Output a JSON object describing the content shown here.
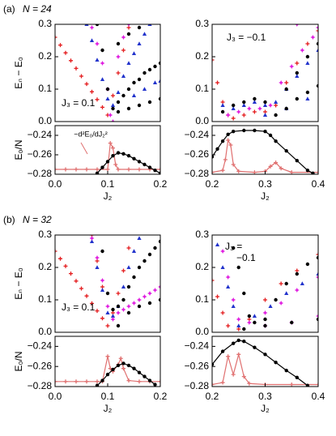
{
  "figure": {
    "rows": [
      {
        "label": "(a)",
        "n": "N = 24"
      },
      {
        "label": "(b)",
        "n": "N = 32"
      }
    ]
  },
  "chart_data": [
    {
      "type": "scatter",
      "ylabel": "Eₙ − E₀",
      "annotations": [
        "J₃ = 0.1"
      ],
      "xlim": [
        0,
        0.2
      ],
      "ylim": [
        0,
        0.3
      ],
      "yticks": [
        {
          "value": 0,
          "label": "0.0"
        },
        0.1,
        0.2,
        0.3
      ],
      "series": [
        {
          "color": "#e41a1c",
          "marker": "plus",
          "x": [
            0,
            0.01,
            0.02,
            0.03,
            0.04,
            0.05,
            0.06,
            0.07,
            0.08,
            0.09,
            0.1,
            0.11,
            0.12,
            0.13,
            0.14
          ],
          "values": [
            0.26,
            0.236,
            0.212,
            0.188,
            0.164,
            0.14,
            0.116,
            0.092,
            0.068,
            0.044,
            0.02,
            0.08,
            0.15,
            0.22,
            0.29
          ]
        },
        {
          "color": "#2233cc",
          "marker": "triangle",
          "x": [
            0.06,
            0.07,
            0.08,
            0.09,
            0.1,
            0.11,
            0.12,
            0.13,
            0.14,
            0.15,
            0.16,
            0.17,
            0.18,
            0.15,
            0.17,
            0.19,
            0.2
          ],
          "values": [
            0.3,
            0.25,
            0.19,
            0.13,
            0.07,
            0.05,
            0.09,
            0.14,
            0.18,
            0.21,
            0.24,
            0.27,
            0.3,
            0.08,
            0.1,
            0.12,
            0.125
          ]
        },
        {
          "color": "#e01ee0",
          "marker": "star",
          "x": [
            0.07,
            0.08,
            0.09,
            0.1,
            0.105,
            0.11,
            0.12,
            0.13,
            0.14
          ],
          "values": [
            0.29,
            0.24,
            0.18,
            0.1,
            0.02,
            0.0,
            0.2,
            0.26,
            0.3
          ]
        },
        {
          "color": "#000000",
          "marker": "circle",
          "x": [
            0.08,
            0.09,
            0.1,
            0.11,
            0.12,
            0.13,
            0.14,
            0.15,
            0.16,
            0.17,
            0.18,
            0.19,
            0.2,
            0.12,
            0.14,
            0.16,
            0.18,
            0.2,
            0.12,
            0.14,
            0.16
          ],
          "values": [
            0.3,
            0.22,
            0.1,
            0.04,
            0.06,
            0.08,
            0.1,
            0.12,
            0.13,
            0.15,
            0.16,
            0.17,
            0.18,
            0.03,
            0.04,
            0.05,
            0.06,
            0.07,
            0.24,
            0.27,
            0.29
          ]
        }
      ]
    },
    {
      "type": "scatter",
      "annotations": [
        "J₃ = −0.1"
      ],
      "xlim": [
        0.2,
        0.4
      ],
      "ylim": [
        0,
        0.3
      ],
      "yticks": [
        {
          "value": 0,
          "label": "0.0"
        },
        0.1,
        0.2,
        0.3
      ],
      "series": [
        {
          "color": "#e41a1c",
          "marker": "plus",
          "x": [
            0.2,
            0.21,
            0.22,
            0.23,
            0.24,
            0.26,
            0.28,
            0.3,
            0.32,
            0.34,
            0.36,
            0.38,
            0.4
          ],
          "values": [
            0.19,
            0.12,
            0.06,
            0.02,
            0.01,
            0.02,
            0.03,
            0.03,
            0.05,
            0.12,
            0.18,
            0.24,
            0.28
          ]
        },
        {
          "color": "#2233cc",
          "marker": "triangle",
          "x": [
            0.22,
            0.24,
            0.26,
            0.28,
            0.3,
            0.32,
            0.34,
            0.36,
            0.38,
            0.4,
            0.3,
            0.34,
            0.38
          ],
          "values": [
            0.05,
            0.04,
            0.05,
            0.06,
            0.05,
            0.06,
            0.1,
            0.14,
            0.18,
            0.22,
            0.02,
            0.04,
            0.07
          ]
        },
        {
          "color": "#e01ee0",
          "marker": "star",
          "x": [
            0.23,
            0.25,
            0.27,
            0.29,
            0.31,
            0.33,
            0.35,
            0.37,
            0.39,
            0.4,
            0.36
          ],
          "values": [
            0.02,
            0.03,
            0.04,
            0.04,
            0.05,
            0.12,
            0.17,
            0.22,
            0.26,
            0.29,
            0.3
          ]
        },
        {
          "color": "#000000",
          "marker": "circle",
          "x": [
            0.22,
            0.24,
            0.26,
            0.28,
            0.3,
            0.32,
            0.34,
            0.36,
            0.38,
            0.4,
            0.34,
            0.36,
            0.38,
            0.4
          ],
          "values": [
            0.03,
            0.05,
            0.06,
            0.07,
            0.06,
            0.02,
            0.04,
            0.07,
            0.09,
            0.11,
            0.1,
            0.15,
            0.2,
            0.24
          ]
        }
      ]
    },
    {
      "type": "line",
      "ylabel": "E₀/N",
      "xlabel": "J₂",
      "annotations": [
        "−d²E₀/dJ₂²"
      ],
      "xlim": [
        0,
        0.2
      ],
      "ylim": [
        -0.28,
        -0.23
      ],
      "yticks": [
        {
          "value": -0.24,
          "label": "−0.24"
        },
        {
          "value": -0.26,
          "label": "−0.26"
        },
        {
          "value": -0.28,
          "label": "−0.28"
        }
      ],
      "xticks": [
        {
          "value": 0,
          "label": "0.0"
        },
        0.1,
        0.2
      ],
      "series": [
        {
          "color": "#e07070",
          "marker": "plus",
          "x": [
            0,
            0.02,
            0.04,
            0.06,
            0.08,
            0.1,
            0.105,
            0.11,
            0.115,
            0.12,
            0.14,
            0.16,
            0.18,
            0.2
          ],
          "values": [
            -0.275,
            -0.275,
            -0.275,
            -0.275,
            -0.275,
            -0.275,
            -0.248,
            -0.253,
            -0.27,
            -0.275,
            -0.275,
            -0.275,
            -0.275,
            -0.275
          ]
        },
        {
          "color": "#000000",
          "marker": "circle",
          "x": [
            0.08,
            0.09,
            0.1,
            0.11,
            0.12,
            0.13,
            0.14,
            0.15,
            0.16,
            0.17,
            0.18,
            0.19,
            0.2
          ],
          "values": [
            -0.279,
            -0.273,
            -0.267,
            -0.261,
            -0.258,
            -0.259,
            -0.261,
            -0.264,
            -0.267,
            -0.27,
            -0.273,
            -0.276,
            -0.279
          ]
        }
      ]
    },
    {
      "type": "line",
      "xlabel": "J₂",
      "xlim": [
        0.2,
        0.4
      ],
      "ylim": [
        -0.28,
        -0.23
      ],
      "yticks": [
        {
          "value": -0.24,
          "label": "−0.24"
        },
        {
          "value": -0.26,
          "label": "−0.26"
        },
        {
          "value": -0.28,
          "label": "−0.28"
        }
      ],
      "xticks": [
        0.2,
        0.3,
        0.4
      ],
      "series": [
        {
          "color": "#e07070",
          "marker": "plus",
          "x": [
            0.2,
            0.22,
            0.225,
            0.23,
            0.235,
            0.24,
            0.25,
            0.28,
            0.3,
            0.31,
            0.32,
            0.33,
            0.35,
            0.4
          ],
          "values": [
            -0.278,
            -0.276,
            -0.265,
            -0.245,
            -0.25,
            -0.27,
            -0.277,
            -0.278,
            -0.277,
            -0.272,
            -0.268,
            -0.274,
            -0.278,
            -0.278
          ]
        },
        {
          "color": "#000000",
          "marker": "circle",
          "x": [
            0.2,
            0.21,
            0.22,
            0.23,
            0.24,
            0.26,
            0.28,
            0.3,
            0.31,
            0.32,
            0.34,
            0.36,
            0.38,
            0.39
          ],
          "values": [
            -0.262,
            -0.254,
            -0.246,
            -0.239,
            -0.236,
            -0.235,
            -0.235,
            -0.236,
            -0.24,
            -0.246,
            -0.256,
            -0.266,
            -0.276,
            -0.279
          ]
        }
      ]
    },
    {
      "type": "scatter",
      "ylabel": "Eₙ − E₀",
      "annotations": [
        "J₃ = 0.1"
      ],
      "xlim": [
        0,
        0.2
      ],
      "ylim": [
        0,
        0.3
      ],
      "yticks": [
        {
          "value": 0,
          "label": "0.0"
        },
        0.1,
        0.2,
        0.3
      ],
      "series": [
        {
          "color": "#e41a1c",
          "marker": "plus",
          "x": [
            0,
            0.01,
            0.02,
            0.03,
            0.04,
            0.05,
            0.06,
            0.07,
            0.08,
            0.09,
            0.1,
            0.11,
            0.12,
            0.13,
            0.14,
            0.07,
            0.08,
            0.09
          ],
          "values": [
            0.25,
            0.227,
            0.204,
            0.181,
            0.158,
            0.135,
            0.112,
            0.089,
            0.066,
            0.043,
            0.02,
            0.06,
            0.12,
            0.19,
            0.26,
            0.3,
            0.22,
            0.14
          ]
        },
        {
          "color": "#2233cc",
          "marker": "triangle",
          "x": [
            0.07,
            0.08,
            0.09,
            0.1,
            0.11,
            0.12,
            0.13,
            0.14,
            0.15,
            0.16
          ],
          "values": [
            0.28,
            0.2,
            0.13,
            0.06,
            0.05,
            0.08,
            0.14,
            0.2,
            0.25,
            0.29
          ]
        },
        {
          "color": "#e01ee0",
          "marker": "star",
          "x": [
            0.07,
            0.08,
            0.09,
            0.1,
            0.11,
            0.12,
            0.13,
            0.14,
            0.15,
            0.16,
            0.17,
            0.18,
            0.19,
            0.2
          ],
          "values": [
            0.29,
            0.23,
            0.16,
            0.08,
            0.04,
            0.06,
            0.07,
            0.08,
            0.09,
            0.1,
            0.11,
            0.12,
            0.13,
            0.14
          ]
        },
        {
          "color": "#000000",
          "marker": "circle",
          "x": [
            0.09,
            0.1,
            0.11,
            0.12,
            0.13,
            0.14,
            0.15,
            0.16,
            0.17,
            0.18,
            0.19,
            0.2,
            0.12,
            0.14,
            0.16,
            0.18,
            0.2
          ],
          "values": [
            0.25,
            0.12,
            0.07,
            0.08,
            0.1,
            0.14,
            0.17,
            0.2,
            0.22,
            0.24,
            0.26,
            0.28,
            0.02,
            0.06,
            0.08,
            0.09,
            0.1
          ]
        }
      ]
    },
    {
      "type": "scatter",
      "annotations": [
        "J₃ =",
        "−0.1"
      ],
      "xlim": [
        0.2,
        0.4
      ],
      "ylim": [
        0,
        0.3
      ],
      "yticks": [
        {
          "value": 0,
          "label": "0.0"
        },
        0.1,
        0.2,
        0.3
      ],
      "series": [
        {
          "color": "#e41a1c",
          "marker": "plus",
          "x": [
            0.2,
            0.21,
            0.22,
            0.23,
            0.25,
            0.27,
            0.3,
            0.33,
            0.36,
            0.4
          ],
          "values": [
            0.16,
            0.11,
            0.06,
            0.02,
            0.01,
            0.04,
            0.1,
            0.15,
            0.19,
            0.24
          ]
        },
        {
          "color": "#2233cc",
          "marker": "triangle",
          "x": [
            0.21,
            0.22,
            0.23,
            0.24,
            0.25,
            0.28,
            0.31,
            0.34,
            0.37,
            0.4
          ],
          "values": [
            0.27,
            0.2,
            0.14,
            0.08,
            0.02,
            0.05,
            0.08,
            0.12,
            0.15,
            0.18
          ]
        },
        {
          "color": "#e01ee0",
          "marker": "star",
          "x": [
            0.22,
            0.23,
            0.24,
            0.25,
            0.27,
            0.3,
            0.33,
            0.36,
            0.4,
            0.3,
            0.35,
            0.4
          ],
          "values": [
            0.25,
            0.17,
            0.1,
            0.04,
            0.03,
            0.06,
            0.09,
            0.13,
            0.17,
            0.02,
            0.03,
            0.05
          ]
        },
        {
          "color": "#000000",
          "marker": "circle",
          "x": [
            0.24,
            0.25,
            0.26,
            0.27,
            0.28,
            0.3,
            0.32,
            0.34,
            0.36,
            0.38,
            0.4,
            0.26,
            0.3,
            0.35,
            0.4
          ],
          "values": [
            0.26,
            0.2,
            0.12,
            0.05,
            0.03,
            0.04,
            0.1,
            0.15,
            0.18,
            0.21,
            0.23,
            0.01,
            0.02,
            0.03,
            0.04
          ]
        }
      ]
    },
    {
      "type": "line",
      "ylabel": "E₀/N",
      "xlabel": "J₂",
      "xlim": [
        0,
        0.2
      ],
      "ylim": [
        -0.28,
        -0.23
      ],
      "yticks": [
        {
          "value": -0.24,
          "label": "−0.24"
        },
        {
          "value": -0.26,
          "label": "−0.26"
        },
        {
          "value": -0.28,
          "label": "−0.28"
        }
      ],
      "xticks": [
        {
          "value": 0,
          "label": "0.0"
        },
        0.1,
        0.2
      ],
      "series": [
        {
          "color": "#e07070",
          "marker": "plus",
          "x": [
            0,
            0.02,
            0.04,
            0.06,
            0.08,
            0.09,
            0.1,
            0.105,
            0.11,
            0.12,
            0.125,
            0.13,
            0.14,
            0.16,
            0.18,
            0.2
          ],
          "values": [
            -0.275,
            -0.275,
            -0.275,
            -0.275,
            -0.275,
            -0.275,
            -0.25,
            -0.262,
            -0.265,
            -0.258,
            -0.252,
            -0.262,
            -0.274,
            -0.275,
            -0.275,
            -0.275
          ]
        },
        {
          "color": "#000000",
          "marker": "circle",
          "x": [
            0.08,
            0.09,
            0.1,
            0.11,
            0.12,
            0.13,
            0.14,
            0.15,
            0.16,
            0.17,
            0.18,
            0.19
          ],
          "values": [
            -0.279,
            -0.274,
            -0.268,
            -0.263,
            -0.259,
            -0.257,
            -0.259,
            -0.262,
            -0.266,
            -0.27,
            -0.274,
            -0.278
          ]
        }
      ]
    },
    {
      "type": "line",
      "xlabel": "J₂",
      "xlim": [
        0.2,
        0.4
      ],
      "ylim": [
        -0.28,
        -0.23
      ],
      "yticks": [
        {
          "value": -0.24,
          "label": "−0.24"
        },
        {
          "value": -0.26,
          "label": "−0.26"
        },
        {
          "value": -0.28,
          "label": "−0.28"
        }
      ],
      "xticks": [
        0.2,
        0.3,
        0.4
      ],
      "series": [
        {
          "color": "#e07070",
          "marker": "plus",
          "x": [
            0.2,
            0.22,
            0.23,
            0.24,
            0.25,
            0.26,
            0.27,
            0.3,
            0.35,
            0.4
          ],
          "values": [
            -0.278,
            -0.276,
            -0.25,
            -0.268,
            -0.248,
            -0.27,
            -0.277,
            -0.278,
            -0.278,
            -0.278
          ]
        },
        {
          "color": "#000000",
          "marker": "circle",
          "x": [
            0.2,
            0.22,
            0.24,
            0.25,
            0.26,
            0.28,
            0.3,
            0.32,
            0.34,
            0.36,
            0.38
          ],
          "values": [
            -0.258,
            -0.245,
            -0.237,
            -0.234,
            -0.235,
            -0.241,
            -0.248,
            -0.256,
            -0.264,
            -0.271,
            -0.279
          ]
        }
      ]
    }
  ]
}
